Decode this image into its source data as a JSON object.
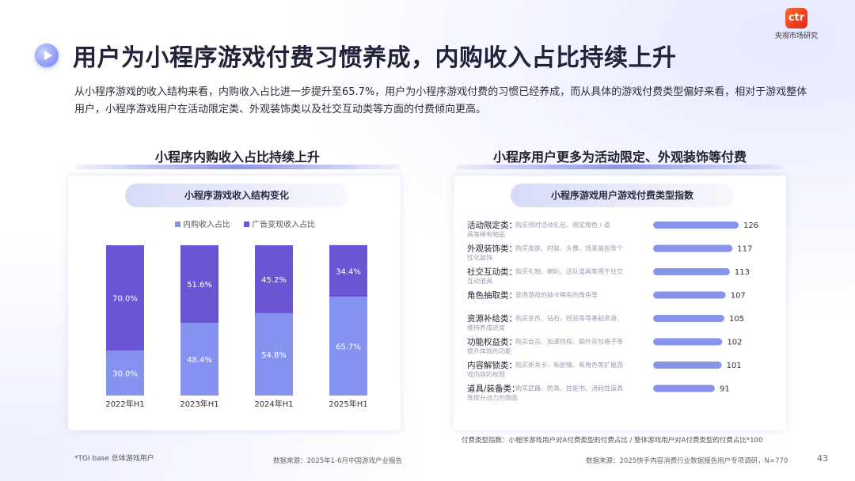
{
  "header": {
    "title": "用户为小程序游戏付费习惯养成，内购收入占比持续上升",
    "logo_mark": "ctr",
    "logo_text": "央视市场研究"
  },
  "intro": "从小程序游戏的收入结构来看，内购收入占比进一步提升至65.7%，用户为小程序游戏付费的习惯已经养成，而从具体的游戏付费类型偏好来看，相对于游戏整体用户，小程序游戏用户在活动限定类、外观装饰类以及社交互动类等方面的付费倾向更高。",
  "left_panel": {
    "heading": "小程序内购收入占比持续上升",
    "pill": "小程序游戏收入结构变化",
    "legend": [
      "内购收入占比",
      "广告变现收入占比"
    ]
  },
  "right_panel": {
    "heading": "小程序用户更多为活动限定、外观装饰等付费",
    "pill": "小程序游戏用户游戏付费类型指数"
  },
  "colors": {
    "inapp": "#8592f0",
    "ads": "#6a56d4",
    "index_bar": "#8a93ec",
    "index_bar_light": "#d9dcf9"
  },
  "chart_data": [
    {
      "type": "bar",
      "stacked": true,
      "title": "小程序游戏收入结构变化",
      "categories": [
        "2022年H1",
        "2023年H1",
        "2024年H1",
        "2025年H1"
      ],
      "series": [
        {
          "name": "内购收入占比",
          "values": [
            30.0,
            48.4,
            54.8,
            65.7
          ],
          "labels": [
            "30.0%",
            "48.4%",
            "54.8%",
            "65.7%"
          ]
        },
        {
          "name": "广告变现收入占比",
          "values": [
            70.0,
            51.6,
            45.2,
            34.4
          ],
          "labels": [
            "70.0%",
            "51.6%",
            "45.2%",
            "34.4%"
          ]
        }
      ],
      "ylim": [
        0,
        100
      ],
      "legend_position": "top"
    },
    {
      "type": "bar",
      "orientation": "horizontal",
      "title": "小程序游戏用户游戏付费类型指数",
      "categories": [
        "活动限定类",
        "外观装饰类",
        "社交互动类",
        "角色抽取类",
        "资源补给类",
        "功能权益类",
        "内容解锁类",
        "道具/装备类"
      ],
      "descriptions": [
        "购买限时活动礼包、限定角色 / 道具等稀有物品",
        "购买皮肤、时装、头像、场景装扮等个性化装饰",
        "购买礼物、喇叭、送队道具等用于社交互动道具",
        "获得游戏的抽卡稀有的角色等",
        "购买金币、钻石、经验等等基础资源，维持养成进度",
        "购买会员、加速特权、额外背包格子等提升体验的功能",
        "购买新关卡、新剧情、新角色等扩展游戏内容的权限",
        "购买武器、防具、技能书、消耗性道具等提升战力的物品"
      ],
      "values": [
        126,
        117,
        113,
        107,
        105,
        102,
        101,
        91
      ],
      "xlim": [
        0,
        140
      ]
    }
  ],
  "notes": {
    "index_definition": "付费类型指数：小程序游戏用户对A付费类型的付费占比 / 整体游戏用户对A付费类型的付费占比*100",
    "tgi_note": "*TGI base 总体游戏用户",
    "source_left": "数据来源：2025年1-6月中国游戏产业报告",
    "source_right": "数据来源：2025快手内容消费行业数据报告用户专项调研，N=770",
    "page_number": "43"
  }
}
